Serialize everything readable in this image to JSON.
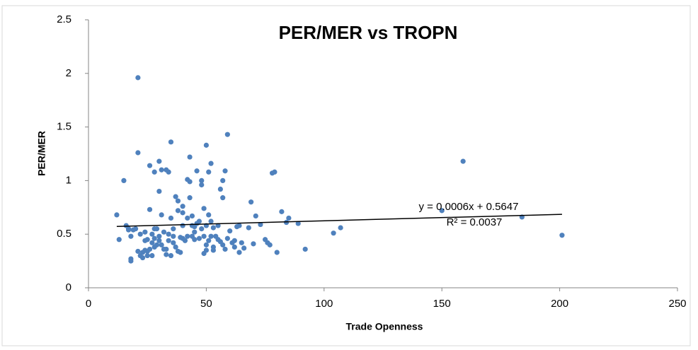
{
  "chart_data": {
    "type": "scatter",
    "title": "PER/MER vs TROPN",
    "x_label": "Trade Openness",
    "y_label": "PER/MER",
    "color": "#4f81bd",
    "xlim": [
      0,
      250
    ],
    "xticks": [
      0,
      50,
      100,
      150,
      200,
      250
    ],
    "ylim": [
      0,
      2.5
    ],
    "yticks": [
      0,
      0.5,
      1,
      1.5,
      2,
      2.5
    ],
    "grid": false,
    "x": [
      12,
      13,
      15,
      16,
      17,
      18,
      18,
      19,
      17,
      18,
      20,
      21,
      21,
      21,
      22,
      23,
      23,
      24,
      24,
      25,
      25,
      26,
      26,
      27,
      27,
      28,
      28,
      28,
      29,
      29,
      30,
      30,
      30,
      31,
      31,
      32,
      33,
      33,
      33,
      34,
      34,
      35,
      35,
      35,
      36,
      36,
      37,
      37,
      38,
      38,
      39,
      39,
      40,
      40,
      41,
      42,
      42,
      43,
      43,
      43,
      44,
      44,
      45,
      46,
      46,
      47,
      48,
      48,
      48,
      49,
      49,
      50,
      50,
      50,
      51,
      51,
      51,
      52,
      52,
      53,
      53,
      54,
      55,
      56,
      56,
      57,
      57,
      58,
      58,
      59,
      59,
      60,
      61,
      62,
      63,
      64,
      65,
      66,
      68,
      69,
      70,
      71,
      73,
      75,
      76,
      77,
      78,
      79,
      80,
      82,
      84,
      85,
      89,
      92,
      104,
      107,
      150,
      159,
      184,
      201,
      22,
      24,
      26,
      27,
      28,
      31,
      32,
      34,
      36,
      38,
      40,
      42,
      44,
      45,
      47,
      49,
      50,
      52,
      53,
      55,
      57,
      62,
      64,
      30,
      25,
      40,
      45
    ],
    "values": [
      0.68,
      0.45,
      1.0,
      0.58,
      0.55,
      0.27,
      0.25,
      0.54,
      0.54,
      0.48,
      0.55,
      1.96,
      1.26,
      0.34,
      0.3,
      0.28,
      0.33,
      0.52,
      0.35,
      0.3,
      0.45,
      0.73,
      1.14,
      0.5,
      0.42,
      1.08,
      0.38,
      0.46,
      0.55,
      0.4,
      1.18,
      0.9,
      0.48,
      1.1,
      0.68,
      0.52,
      1.1,
      0.36,
      0.31,
      1.08,
      0.44,
      1.36,
      0.65,
      0.3,
      0.55,
      0.42,
      0.85,
      0.38,
      0.81,
      0.72,
      0.47,
      0.33,
      0.76,
      0.58,
      0.44,
      1.01,
      0.65,
      0.99,
      1.22,
      0.84,
      0.67,
      0.48,
      0.57,
      1.09,
      0.6,
      0.46,
      0.96,
      1.0,
      0.55,
      0.32,
      0.74,
      1.33,
      0.4,
      0.35,
      1.08,
      0.68,
      0.44,
      1.16,
      0.62,
      0.56,
      0.38,
      0.48,
      0.58,
      0.43,
      0.92,
      1.0,
      0.84,
      1.09,
      0.36,
      1.43,
      0.46,
      0.53,
      0.42,
      0.38,
      0.57,
      0.33,
      0.42,
      0.37,
      0.56,
      0.8,
      0.41,
      0.67,
      0.59,
      0.45,
      0.42,
      0.4,
      1.07,
      1.08,
      0.33,
      0.71,
      0.61,
      0.65,
      0.6,
      0.36,
      0.51,
      0.56,
      0.72,
      1.18,
      0.66,
      0.49,
      0.5,
      0.44,
      0.36,
      0.3,
      0.55,
      0.4,
      0.36,
      0.5,
      0.48,
      0.34,
      0.46,
      0.48,
      0.58,
      0.45,
      0.62,
      0.48,
      0.58,
      0.48,
      0.35,
      0.45,
      0.4,
      0.44,
      0.58,
      0.44,
      0.34,
      0.7,
      0.52
    ],
    "trendline": {
      "equation": "y = 0.0006x + 0.5647",
      "r_squared": "R² = 0.0037",
      "slope": 0.0006,
      "intercept": 0.5647,
      "x": [
        12,
        201
      ]
    }
  }
}
